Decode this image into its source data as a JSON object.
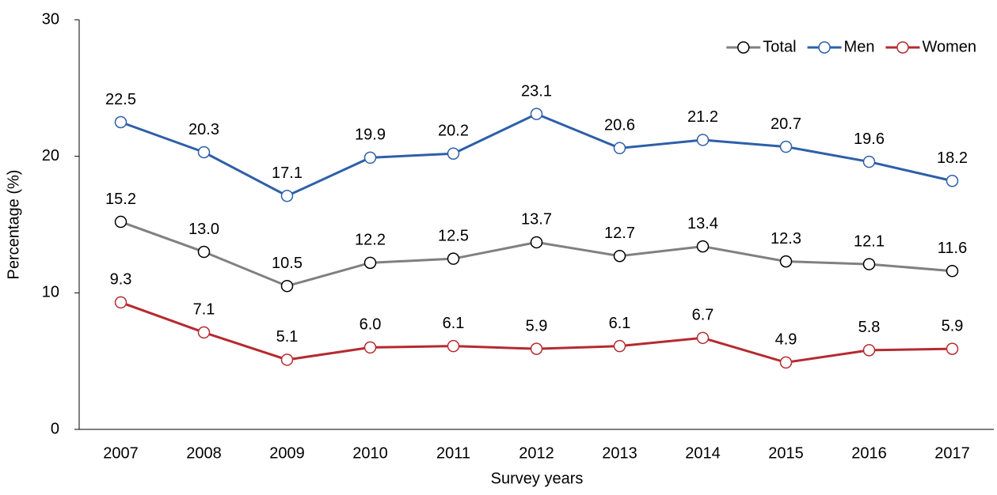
{
  "chart_data": {
    "type": "line",
    "x_label": "Survey years",
    "y_label": "Percentage (%)",
    "categories": [
      "2007",
      "2008",
      "2009",
      "2010",
      "2011",
      "2012",
      "2013",
      "2014",
      "2015",
      "2016",
      "2017"
    ],
    "series": [
      {
        "name": "Total",
        "color": "#808080",
        "marker_edge_color": "#000000",
        "values": [
          15.2,
          13.0,
          10.5,
          12.2,
          12.5,
          13.7,
          12.7,
          13.4,
          12.3,
          12.1,
          11.6
        ],
        "value_labels": [
          "15.2",
          "13.0",
          "10.5",
          "12.2",
          "12.5",
          "13.7",
          "12.7",
          "13.4",
          "12.3",
          "12.1",
          "11.6"
        ]
      },
      {
        "name": "Men",
        "color": "#2e5fa8",
        "marker_edge_color": "#2e5fa8",
        "values": [
          22.5,
          20.3,
          17.1,
          19.9,
          20.2,
          23.1,
          20.6,
          21.2,
          20.7,
          19.6,
          18.2
        ],
        "value_labels": [
          "22.5",
          "20.3",
          "17.1",
          "19.9",
          "20.2",
          "23.1",
          "20.6",
          "21.2",
          "20.7",
          "19.6",
          "18.2"
        ]
      },
      {
        "name": "Women",
        "color": "#b52a30",
        "marker_edge_color": "#b52a30",
        "values": [
          9.3,
          7.1,
          5.1,
          6.0,
          6.1,
          5.9,
          6.1,
          6.7,
          4.9,
          5.8,
          5.9
        ],
        "value_labels": [
          "9.3",
          "7.1",
          "5.1",
          "6.0",
          "6.1",
          "5.9",
          "6.1",
          "6.7",
          "4.9",
          "5.8",
          "5.9"
        ]
      }
    ],
    "ylim": [
      0,
      30
    ],
    "yticks": [
      0,
      10,
      20,
      30
    ],
    "grid": false,
    "legend": "upper right"
  }
}
